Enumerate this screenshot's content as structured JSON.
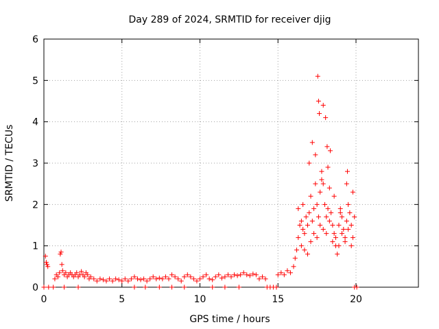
{
  "chart_data": {
    "type": "scatter",
    "title": "Day 289 of 2024, SRMTID for receiver djig",
    "xlabel": "GPS time / hours",
    "ylabel": "SRMTID / TECUs",
    "xlim": [
      0,
      24
    ],
    "ylim": [
      0,
      6
    ],
    "xticks": [
      0,
      5,
      10,
      15,
      20
    ],
    "yticks": [
      0,
      1,
      2,
      3,
      4,
      5,
      6
    ],
    "grid": true,
    "marker": "+",
    "color": "#ff0000",
    "series": [
      {
        "name": "SRMTID",
        "x": [
          0.1,
          0.15,
          0.2,
          0.25,
          0.3,
          0.7,
          0.8,
          0.9,
          1.0,
          1.05,
          1.1,
          1.15,
          1.2,
          1.3,
          1.4,
          1.5,
          1.6,
          1.7,
          1.8,
          1.9,
          2.0,
          2.1,
          2.2,
          2.3,
          2.4,
          2.5,
          2.6,
          2.7,
          2.8,
          2.9,
          3.0,
          3.2,
          3.4,
          3.6,
          3.8,
          4.0,
          4.2,
          4.4,
          4.6,
          4.8,
          5.0,
          5.2,
          5.4,
          5.6,
          5.8,
          6.0,
          6.2,
          6.4,
          6.6,
          6.8,
          7.0,
          7.2,
          7.4,
          7.6,
          7.8,
          8.0,
          8.2,
          8.4,
          8.6,
          8.8,
          9.0,
          9.2,
          9.4,
          9.6,
          9.8,
          10.0,
          10.2,
          10.4,
          10.6,
          10.8,
          11.0,
          11.2,
          11.4,
          11.6,
          11.8,
          12.0,
          12.2,
          12.4,
          12.6,
          12.8,
          13.0,
          13.2,
          13.4,
          13.6,
          13.8,
          14.0,
          14.2,
          15.0,
          15.2,
          15.4,
          15.6,
          15.8,
          16.0,
          16.1,
          16.2,
          16.3,
          16.4,
          16.5,
          16.6,
          16.7,
          16.8,
          16.9,
          17.0,
          17.1,
          17.2,
          17.3,
          17.4,
          17.5,
          17.6,
          17.7,
          17.8,
          17.9,
          18.0,
          18.1,
          18.2,
          18.3,
          18.4,
          18.5,
          18.6,
          18.7,
          18.8,
          18.9,
          19.0,
          19.1,
          19.2,
          19.3,
          19.4,
          19.5,
          19.6,
          19.7,
          19.8,
          19.9,
          16.3,
          16.5,
          16.7,
          16.9,
          17.1,
          17.3,
          17.5,
          17.7,
          17.9,
          18.1,
          18.3,
          18.5,
          18.7,
          18.9,
          19.1,
          19.3,
          19.5,
          19.7,
          16.6,
          17.0,
          17.4,
          17.8,
          18.2,
          18.6,
          19.0,
          19.4,
          19.8,
          17.55,
          17.6,
          17.65,
          17.2,
          18.05,
          18.15,
          19.45,
          17.9,
          18.35,
          0.0,
          0.6,
          1.3,
          2.2,
          5.8,
          6.5,
          7.4,
          8.2,
          9.0,
          10.8,
          11.6,
          12.5,
          14.3,
          14.5,
          14.7,
          14.9,
          19.9,
          20.05
        ],
        "y": [
          0.75,
          0.6,
          0.55,
          0.5,
          0.0,
          0.2,
          0.3,
          0.25,
          0.35,
          0.8,
          0.85,
          0.55,
          0.4,
          0.3,
          0.35,
          0.25,
          0.3,
          0.35,
          0.3,
          0.25,
          0.3,
          0.35,
          0.25,
          0.3,
          0.38,
          0.3,
          0.25,
          0.35,
          0.3,
          0.2,
          0.25,
          0.2,
          0.15,
          0.2,
          0.18,
          0.15,
          0.2,
          0.15,
          0.2,
          0.18,
          0.15,
          0.2,
          0.15,
          0.2,
          0.25,
          0.2,
          0.18,
          0.2,
          0.15,
          0.2,
          0.25,
          0.2,
          0.22,
          0.2,
          0.25,
          0.2,
          0.3,
          0.25,
          0.2,
          0.15,
          0.25,
          0.3,
          0.25,
          0.2,
          0.15,
          0.2,
          0.25,
          0.3,
          0.2,
          0.18,
          0.25,
          0.3,
          0.22,
          0.25,
          0.3,
          0.25,
          0.3,
          0.28,
          0.3,
          0.35,
          0.3,
          0.28,
          0.32,
          0.3,
          0.2,
          0.25,
          0.2,
          0.3,
          0.35,
          0.3,
          0.4,
          0.35,
          0.5,
          0.7,
          0.9,
          1.2,
          1.5,
          1.6,
          1.4,
          1.3,
          1.7,
          1.5,
          1.8,
          2.2,
          1.6,
          1.9,
          2.5,
          2.0,
          1.7,
          2.3,
          2.8,
          2.5,
          2.0,
          1.7,
          1.9,
          2.4,
          1.8,
          1.5,
          1.3,
          1.0,
          0.8,
          1.5,
          1.9,
          1.7,
          1.4,
          1.2,
          1.6,
          2.0,
          1.8,
          1.5,
          1.2,
          1.7,
          1.9,
          1.0,
          0.9,
          0.8,
          1.1,
          1.3,
          1.2,
          1.5,
          1.4,
          1.3,
          1.6,
          1.1,
          1.2,
          1.0,
          1.3,
          1.1,
          1.4,
          1.0,
          2.0,
          3.0,
          3.2,
          2.6,
          2.9,
          2.2,
          1.8,
          2.5,
          2.3,
          5.1,
          4.5,
          4.2,
          3.5,
          4.1,
          3.4,
          2.8,
          4.4,
          3.3,
          0.0,
          0.0,
          0.0,
          0.0,
          0.0,
          0.0,
          0.0,
          0.0,
          0.0,
          0.0,
          0.0,
          0.0,
          0.0,
          0.0,
          0.0,
          0.0,
          0.0,
          0.0
        ]
      }
    ]
  }
}
